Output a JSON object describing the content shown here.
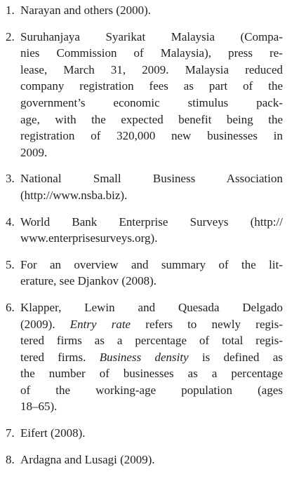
{
  "notes": [
    {
      "number": "1.",
      "lines": [
        "Narayan and others (2000)."
      ]
    },
    {
      "number": "2.",
      "lines": [
        "Suruhanjaya Syarikat Malaysia (Compa-",
        "nies Commission of Malaysia), press re-",
        "lease, March 31, 2009. Malaysia reduced",
        "company registration fees as part of the",
        "government’s economic stimulus pack-",
        "age, with the expected benefit being the",
        "registration of 320,000 new businesses in",
        "2009."
      ]
    },
    {
      "number": "3.",
      "lines": [
        "National Small Business Association",
        "(http://www.nsba.biz)."
      ]
    },
    {
      "number": "4.",
      "lines": [
        "World Bank Enterprise Surveys (http://",
        "www.enterprisesurveys.org)."
      ]
    },
    {
      "number": "5.",
      "lines": [
        "For an overview and summary of the lit-",
        "erature, see Djankov (2008)."
      ]
    },
    {
      "number": "6.",
      "lines": [
        "Klapper, Lewin and Quesada Delgado",
        [
          {
            "text": "(2009). "
          },
          {
            "text": "Entry rate",
            "italic": true
          },
          {
            "text": " refers to newly regis-"
          }
        ],
        "tered firms as a percentage of total regis-",
        [
          {
            "text": "tered firms. "
          },
          {
            "text": "Business density",
            "italic": true
          },
          {
            "text": " is defined as"
          }
        ],
        "the number of businesses as a percentage",
        "of the working-age population (ages",
        "18–65)."
      ]
    },
    {
      "number": "7.",
      "lines": [
        "Eifert (2008)."
      ]
    },
    {
      "number": "8.",
      "lines": [
        "Ardagna and Lusagi (2009)."
      ]
    }
  ]
}
